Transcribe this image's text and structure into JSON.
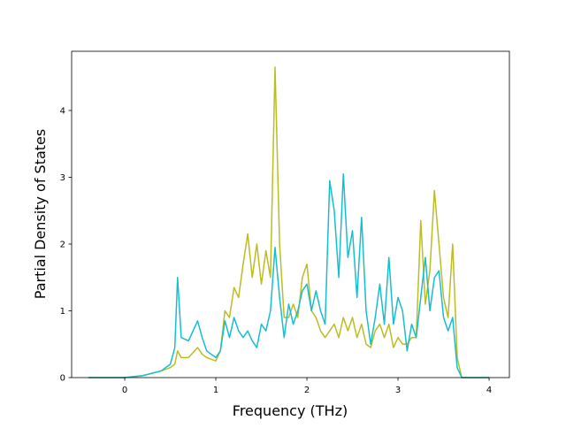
{
  "chart_data": {
    "type": "line",
    "xlabel": "Frequency (THz)",
    "ylabel": "Partial Density of States",
    "x": [
      -0.4,
      0,
      0.2,
      0.4,
      0.5,
      0.55,
      0.58,
      0.62,
      0.7,
      0.8,
      0.85,
      0.9,
      1.0,
      1.05,
      1.1,
      1.15,
      1.2,
      1.25,
      1.3,
      1.35,
      1.4,
      1.45,
      1.5,
      1.55,
      1.6,
      1.65,
      1.7,
      1.75,
      1.8,
      1.85,
      1.9,
      1.95,
      2.0,
      2.05,
      2.1,
      2.15,
      2.2,
      2.25,
      2.3,
      2.35,
      2.4,
      2.45,
      2.5,
      2.55,
      2.6,
      2.65,
      2.7,
      2.75,
      2.8,
      2.85,
      2.9,
      2.95,
      3.0,
      3.05,
      3.1,
      3.15,
      3.2,
      3.25,
      3.3,
      3.35,
      3.4,
      3.45,
      3.5,
      3.55,
      3.6,
      3.65,
      3.7,
      4.0
    ],
    "series": [
      {
        "color": "#bcbd22",
        "values": [
          0,
          0,
          0.03,
          0.1,
          0.15,
          0.2,
          0.4,
          0.3,
          0.3,
          0.45,
          0.35,
          0.3,
          0.25,
          0.4,
          1.0,
          0.9,
          1.35,
          1.2,
          1.7,
          2.15,
          1.5,
          2.0,
          1.4,
          1.9,
          1.5,
          4.65,
          2.0,
          0.9,
          0.9,
          1.1,
          0.9,
          1.5,
          1.7,
          1.0,
          0.9,
          0.7,
          0.6,
          0.7,
          0.8,
          0.6,
          0.9,
          0.7,
          0.9,
          0.6,
          0.8,
          0.5,
          0.45,
          0.7,
          0.8,
          0.6,
          0.8,
          0.45,
          0.6,
          0.5,
          0.5,
          0.6,
          0.6,
          2.35,
          1.1,
          1.6,
          2.8,
          2.0,
          1.2,
          0.9,
          2.0,
          0.3,
          0,
          0
        ]
      },
      {
        "color": "#17becf",
        "values": [
          0,
          0,
          0.03,
          0.1,
          0.2,
          0.45,
          1.5,
          0.6,
          0.55,
          0.85,
          0.6,
          0.4,
          0.3,
          0.4,
          0.85,
          0.6,
          0.9,
          0.7,
          0.6,
          0.7,
          0.55,
          0.45,
          0.8,
          0.7,
          1.0,
          1.95,
          1.2,
          0.6,
          1.1,
          0.8,
          1.0,
          1.3,
          1.4,
          1.0,
          1.3,
          1.0,
          0.8,
          2.95,
          2.5,
          1.5,
          3.05,
          1.8,
          2.2,
          1.2,
          2.4,
          1.0,
          0.5,
          0.9,
          1.4,
          0.8,
          1.8,
          0.8,
          1.2,
          1.0,
          0.4,
          0.8,
          0.6,
          1.2,
          1.8,
          1.0,
          1.5,
          1.6,
          0.9,
          0.7,
          0.9,
          0.15,
          0,
          0
        ]
      }
    ],
    "xlim": [
      -0.583,
      4.223
    ],
    "xticks": [
      0,
      1,
      2,
      3,
      4
    ],
    "ylim": [
      0,
      4.887
    ],
    "yticks": [
      0,
      1,
      2,
      3,
      4
    ]
  }
}
